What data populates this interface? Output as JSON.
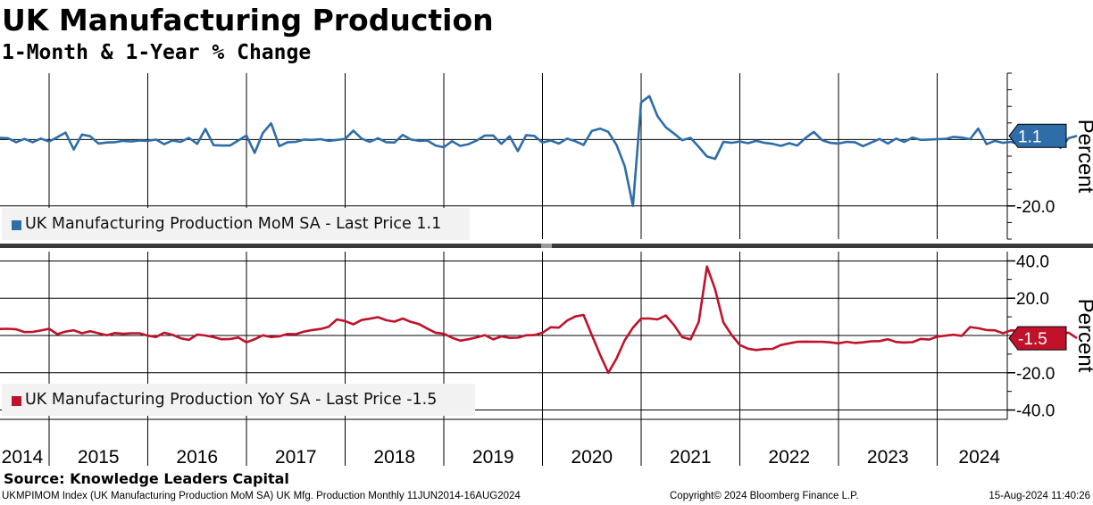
{
  "header": {
    "title": "UK Manufacturing Production",
    "subtitle": "1-Month & 1-Year % Change"
  },
  "source": "Source: Knowledge Leaders Capital",
  "footer": {
    "left": "UKMPIMOM Index (UK Manufacturing Production MoM SA) UK Mfg. Production  Monthly 11JUN2014-16AUG2024",
    "middle": "Copyright© 2024 Bloomberg Finance L.P.",
    "right": "15-Aug-2024 11:40:26"
  },
  "colors": {
    "mom": "#2e6da8",
    "yoy": "#c0122a",
    "grid": "#000000",
    "divider": "#3a3a3a"
  },
  "chart_data": [
    {
      "type": "line",
      "name": "UK Manufacturing Production MoM SA",
      "legend": "UK Manufacturing Production MoM SA - Last Price 1.1",
      "ylabel": "Percent",
      "ylim": [
        -30,
        20
      ],
      "yticks": [
        {
          "value": -20,
          "label": "-20.0"
        }
      ],
      "last_value": 1.1,
      "last_label": "1.1",
      "x_start": "2014-06",
      "values": [
        0.5,
        0.4,
        -0.8,
        0.2,
        -0.8,
        0.3,
        -0.6,
        0.7,
        2.1,
        -3.0,
        1.5,
        1.0,
        -1.2,
        -0.9,
        -0.8,
        -0.4,
        -0.6,
        -0.3,
        -0.4,
        0.0,
        -1.4,
        -0.3,
        -0.7,
        0.5,
        -1.3,
        3.2,
        -1.7,
        -1.8,
        -1.8,
        -0.3,
        1.2,
        -4.0,
        2.0,
        4.9,
        -2.0,
        -0.8,
        -0.7,
        0.0,
        -0.1,
        0.1,
        -0.4,
        -0.1,
        0.2,
        2.7,
        0.3,
        -0.7,
        0.4,
        -0.8,
        -0.9,
        1.4,
        0.0,
        -0.4,
        -0.3,
        -1.8,
        -2.3,
        -0.5,
        -1.9,
        -1.4,
        -0.3,
        1.2,
        1.2,
        -1.3,
        1.0,
        -3.5,
        1.3,
        1.1,
        -0.9,
        -0.3,
        -1.2,
        0.3,
        -0.5,
        -1.6,
        2.6,
        3.3,
        2.3,
        -1.6,
        -8.0,
        -20.0,
        11.2,
        13.1,
        7.0,
        3.7,
        1.8,
        -0.2,
        0.5,
        -2.2,
        -5.1,
        -5.8,
        -0.7,
        -1.0,
        -0.6,
        -1.1,
        -0.4,
        -1.0,
        -1.3,
        -1.9,
        -1.1,
        -1.8,
        0.5,
        2.3,
        -0.2,
        -1.0,
        -1.2,
        -0.7,
        -0.8,
        -2.0,
        -0.9,
        0.2,
        -1.2,
        0.3,
        -0.7,
        0.6,
        -0.1,
        0.0,
        0.1,
        0.2,
        0.8,
        0.6,
        0.1,
        3.3,
        -1.4,
        -0.4,
        -1.0,
        -0.7,
        -1.5,
        0.8,
        0.7,
        -1.3,
        0.2,
        -2.5,
        0.4,
        1.1
      ]
    },
    {
      "type": "line",
      "name": "UK Manufacturing Production YoY SA",
      "legend": "UK Manufacturing Production YoY SA - Last Price -1.5",
      "ylabel": "Percent",
      "ylim": [
        -45,
        45
      ],
      "yticks": [
        {
          "value": 40,
          "label": "40.0"
        },
        {
          "value": 20,
          "label": "20.0"
        },
        {
          "value": -20,
          "label": "-20.0"
        },
        {
          "value": -40,
          "label": "-40.0"
        }
      ],
      "last_value": -1.5,
      "last_label": "-1.5",
      "x_start": "2014-06",
      "values": [
        3.5,
        3.6,
        3.3,
        1.8,
        1.9,
        2.7,
        3.6,
        0.7,
        2.1,
        2.8,
        1.2,
        2.3,
        1.2,
        0.1,
        1.3,
        0.9,
        1.2,
        1.2,
        -0.1,
        -0.8,
        1.5,
        0.4,
        -1.5,
        -2.4,
        0.5,
        0.0,
        -0.9,
        -2.0,
        -1.9,
        -1.1,
        -3.7,
        -2.0,
        0.1,
        -0.8,
        -0.5,
        0.8,
        0.7,
        2.1,
        2.9,
        3.5,
        4.7,
        8.6,
        7.7,
        6.0,
        8.3,
        9.0,
        9.8,
        8.2,
        7.4,
        9.1,
        7.3,
        6.1,
        3.7,
        1.5,
        0.9,
        -1.2,
        -2.8,
        -2.0,
        -1.0,
        0.2,
        -2.1,
        -0.5,
        -1.3,
        -1.2,
        0.1,
        0.2,
        1.5,
        4.4,
        4.2,
        8.0,
        10.2,
        11.0,
        0.2,
        -10.3,
        -20.0,
        -12.4,
        -2.6,
        4.2,
        9.1,
        9.1,
        8.6,
        10.7,
        5.6,
        -0.9,
        -2.1,
        7.3,
        37.0,
        24.7,
        7.0,
        0.3,
        -5.1,
        -7.1,
        -7.8,
        -7.3,
        -7.2,
        -5.1,
        -4.2,
        -3.4,
        -3.3,
        -3.4,
        -3.4,
        -3.7,
        -4.2,
        -3.4,
        -4.0,
        -3.7,
        -3.1,
        -3.0,
        -2.0,
        -3.5,
        -3.8,
        -3.6,
        -1.8,
        -2.2,
        -0.6,
        -0.1,
        0.4,
        -0.2,
        4.5,
        3.9,
        2.9,
        2.8,
        1.2,
        2.8,
        2.2,
        3.2,
        2.8,
        1.9,
        2.2,
        1.2,
        1.5,
        -1.5
      ]
    }
  ],
  "x_axis": {
    "ticks": [
      {
        "year": "2014",
        "label": "2014"
      },
      {
        "year": "2015",
        "label": "2015"
      },
      {
        "year": "2016",
        "label": "2016"
      },
      {
        "year": "2017",
        "label": "2017"
      },
      {
        "year": "2018",
        "label": "2018"
      },
      {
        "year": "2019",
        "label": "2019"
      },
      {
        "year": "2020",
        "label": "2020"
      },
      {
        "year": "2021",
        "label": "2021"
      },
      {
        "year": "2022",
        "label": "2022"
      },
      {
        "year": "2023",
        "label": "2023"
      },
      {
        "year": "2024",
        "label": "2024"
      }
    ]
  }
}
